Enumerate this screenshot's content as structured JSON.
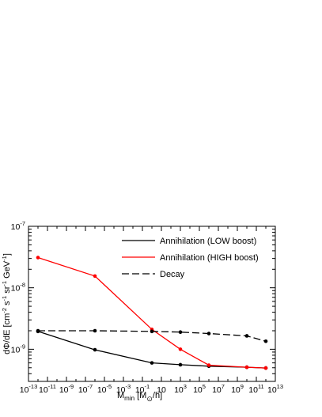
{
  "chart_data": {
    "type": "line",
    "xlabel": {
      "main": "M",
      "sub": "min",
      "rest": " [M",
      "sunsub": "⊙",
      "end": "/h]"
    },
    "ylabel": {
      "text": "dΦ/dE [cm",
      "exp1": "-2",
      "mid1": " s",
      "exp2": "-1",
      "mid2": " sr",
      "exp3": "-1",
      "mid3": " GeV",
      "exp4": "-1",
      "end": "]"
    },
    "x_scale": "log",
    "y_scale": "log",
    "xlim": [
      1e-13,
      10000000000000.0
    ],
    "ylim": [
      3e-10,
      1e-07
    ],
    "x_ticks": [
      {
        "v": 1e-13,
        "base": "10",
        "exp": "-13"
      },
      {
        "v": 1e-11,
        "base": "10",
        "exp": "-11"
      },
      {
        "v": 1e-09,
        "base": "10",
        "exp": "-9"
      },
      {
        "v": 1e-07,
        "base": "10",
        "exp": "-7"
      },
      {
        "v": 1e-05,
        "base": "10",
        "exp": "-5"
      },
      {
        "v": 0.001,
        "base": "10",
        "exp": "-3"
      },
      {
        "v": 0.1,
        "base": "10",
        "exp": "-1"
      },
      {
        "v": 10,
        "base": "10",
        "exp": ""
      },
      {
        "v": 1000.0,
        "base": "10",
        "exp": "3"
      },
      {
        "v": 100000.0,
        "base": "10",
        "exp": "5"
      },
      {
        "v": 10000000.0,
        "base": "10",
        "exp": "7"
      },
      {
        "v": 1000000000.0,
        "base": "10",
        "exp": "9"
      },
      {
        "v": 100000000000.0,
        "base": "10",
        "exp": "11"
      },
      {
        "v": 10000000000000.0,
        "base": "10",
        "exp": "13"
      }
    ],
    "y_ticks": [
      {
        "v": 1e-09,
        "base": "10",
        "exp": "-9"
      },
      {
        "v": 1e-08,
        "base": "10",
        "exp": "-8"
      },
      {
        "v": 1e-07,
        "base": "10",
        "exp": "-7"
      }
    ],
    "grid": false,
    "legend_position": "top-right",
    "series": [
      {
        "name": "Annihilation (LOW boost)",
        "color": "#000000",
        "dash": "solid",
        "x": [
          1e-12,
          1e-06,
          1,
          1000.0,
          1000000.0,
          10000000000.0,
          1000000000000.0
        ],
        "y": [
          1.95e-09,
          9.8e-10,
          6e-10,
          5.6e-10,
          5.3e-10,
          5.1e-10,
          4.95e-10
        ]
      },
      {
        "name": "Annihilation (HIGH boost)",
        "color": "#ff0000",
        "dash": "solid",
        "x": [
          1e-12,
          1e-06,
          1,
          1000.0,
          1000000.0,
          10000000000.0,
          1000000000000.0
        ],
        "y": [
          3.1e-08,
          1.55e-08,
          2.1e-09,
          1e-09,
          5.5e-10,
          5.1e-10,
          4.95e-10
        ]
      },
      {
        "name": "Decay",
        "color": "#000000",
        "dash": "dashed",
        "x": [
          1e-12,
          1e-06,
          1,
          1000.0,
          1000000.0,
          10000000000.0,
          1000000000000.0
        ],
        "y": [
          2e-09,
          2e-09,
          1.95e-09,
          1.9e-09,
          1.8e-09,
          1.65e-09,
          1.35e-09
        ]
      }
    ]
  }
}
